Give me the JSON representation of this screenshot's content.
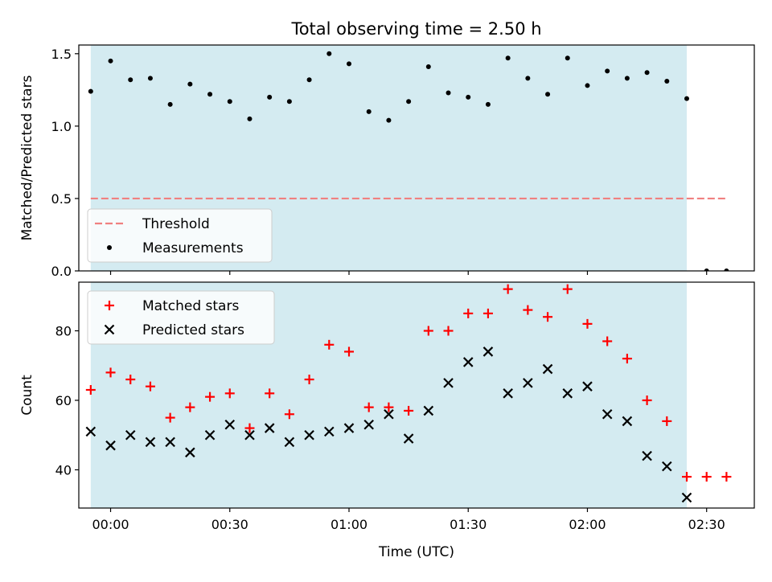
{
  "figure": {
    "title": "Total observing time = 2.50 h",
    "xlabel": "Time (UTC)",
    "x_ticks": [
      "00:00",
      "00:30",
      "01:00",
      "01:30",
      "02:00",
      "02:30"
    ]
  },
  "colors": {
    "observing_window": "#d4ebf1",
    "threshold": "#f08080",
    "measurements": "#000000",
    "matched": "#ff0000",
    "predicted": "#000000"
  },
  "chart_data": [
    {
      "type": "scatter",
      "ylabel": "Matched/Predicted stars",
      "xlim": [
        "23:52",
        "02:42"
      ],
      "ylim": [
        0,
        1.56
      ],
      "y_ticks": [
        "0.0",
        "0.5",
        "1.0",
        "1.5"
      ],
      "observing_window": [
        "23:55",
        "02:25"
      ],
      "legend": {
        "placement": "lower-left",
        "entries": [
          "Threshold",
          "Measurements"
        ]
      },
      "threshold": {
        "name": "Threshold",
        "value": 0.5,
        "x_range": [
          "23:55",
          "02:35"
        ]
      },
      "series": [
        {
          "name": "Measurements",
          "x": [
            "23:55",
            "00:00",
            "00:05",
            "00:10",
            "00:15",
            "00:20",
            "00:25",
            "00:30",
            "00:35",
            "00:40",
            "00:45",
            "00:50",
            "00:55",
            "01:00",
            "01:05",
            "01:10",
            "01:15",
            "01:20",
            "01:25",
            "01:30",
            "01:35",
            "01:40",
            "01:45",
            "01:50",
            "01:55",
            "02:00",
            "02:05",
            "02:10",
            "02:15",
            "02:20",
            "02:25",
            "02:30",
            "02:35"
          ],
          "y": [
            1.24,
            1.45,
            1.32,
            1.33,
            1.15,
            1.29,
            1.22,
            1.17,
            1.05,
            1.2,
            1.17,
            1.32,
            1.5,
            1.43,
            1.1,
            1.04,
            1.17,
            1.41,
            1.23,
            1.2,
            1.15,
            1.47,
            1.33,
            1.22,
            1.47,
            1.28,
            1.38,
            1.33,
            1.37,
            1.31,
            1.19,
            0.0,
            0.0
          ]
        }
      ]
    },
    {
      "type": "scatter",
      "ylabel": "Count",
      "xlim": [
        "23:52",
        "02:42"
      ],
      "ylim": [
        29,
        94
      ],
      "y_ticks": [
        "40",
        "60",
        "80"
      ],
      "observing_window": [
        "23:55",
        "02:25"
      ],
      "legend": {
        "placement": "upper-left",
        "entries": [
          "Matched stars",
          "Predicted stars"
        ]
      },
      "series": [
        {
          "name": "Matched stars",
          "marker": "plus",
          "x": [
            "23:55",
            "00:00",
            "00:05",
            "00:10",
            "00:15",
            "00:20",
            "00:25",
            "00:30",
            "00:35",
            "00:40",
            "00:45",
            "00:50",
            "00:55",
            "01:00",
            "01:05",
            "01:10",
            "01:15",
            "01:20",
            "01:25",
            "01:30",
            "01:35",
            "01:40",
            "01:45",
            "01:50",
            "01:55",
            "02:00",
            "02:05",
            "02:10",
            "02:15",
            "02:20",
            "02:25",
            "02:30",
            "02:35"
          ],
          "y": [
            63,
            68,
            66,
            64,
            55,
            58,
            61,
            62,
            52,
            62,
            56,
            66,
            76,
            74,
            58,
            58,
            57,
            80,
            80,
            85,
            85,
            92,
            86,
            84,
            92,
            82,
            77,
            72,
            60,
            54,
            38,
            38,
            38
          ]
        },
        {
          "name": "Predicted stars",
          "marker": "x",
          "x": [
            "23:55",
            "00:00",
            "00:05",
            "00:10",
            "00:15",
            "00:20",
            "00:25",
            "00:30",
            "00:35",
            "00:40",
            "00:45",
            "00:50",
            "00:55",
            "01:00",
            "01:05",
            "01:10",
            "01:15",
            "01:20",
            "01:25",
            "01:30",
            "01:35",
            "01:40",
            "01:45",
            "01:50",
            "01:55",
            "02:00",
            "02:05",
            "02:10",
            "02:15",
            "02:20",
            "02:25"
          ],
          "y": [
            51,
            47,
            50,
            48,
            48,
            45,
            50,
            53,
            50,
            52,
            48,
            50,
            51,
            52,
            53,
            56,
            49,
            57,
            65,
            71,
            74,
            62,
            65,
            69,
            62,
            64,
            56,
            54,
            44,
            41,
            32
          ]
        }
      ]
    }
  ]
}
